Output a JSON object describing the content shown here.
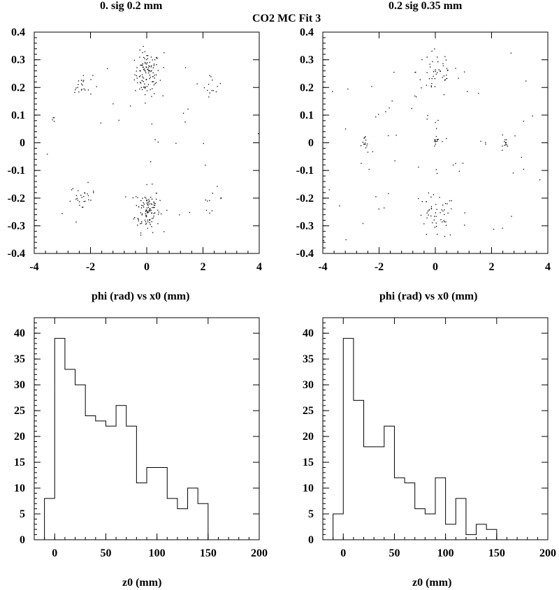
{
  "figure": {
    "title": "CO2 MC Fit 3"
  },
  "chart_data": [
    {
      "type": "scatter",
      "title": "0.  sig  0.2 mm",
      "xlabel": "phi (rad) vs x0 (mm)",
      "ylabel": "",
      "xlim": [
        -4,
        4
      ],
      "ylim": [
        -0.4,
        0.4
      ],
      "xticks": [
        "-4",
        "-2",
        "0",
        "2",
        "4"
      ],
      "yticks": [
        "-0.4",
        "-0.3",
        "-0.2",
        "-0.1",
        "0",
        "0.1",
        "0.2",
        "0.3",
        "0.4"
      ],
      "clusters": [
        {
          "cx": 0.0,
          "cy": 0.25,
          "sx": 0.22,
          "sy": 0.04,
          "n": 110
        },
        {
          "cx": 0.0,
          "cy": -0.24,
          "sx": 0.22,
          "sy": 0.04,
          "n": 110
        },
        {
          "cx": -2.3,
          "cy": 0.21,
          "sx": 0.18,
          "sy": 0.02,
          "n": 22
        },
        {
          "cx": 2.3,
          "cy": 0.21,
          "sx": 0.18,
          "sy": 0.02,
          "n": 14
        },
        {
          "cx": -2.3,
          "cy": -0.2,
          "sx": 0.22,
          "sy": 0.025,
          "n": 26
        },
        {
          "cx": 2.3,
          "cy": -0.2,
          "sx": 0.2,
          "sy": 0.02,
          "n": 9
        },
        {
          "cx": -3.3,
          "cy": 0.085,
          "sx": 0.05,
          "sy": 0.005,
          "n": 4
        },
        {
          "cx": 0.0,
          "cy": 0.0,
          "sx": 2.2,
          "sy": 0.14,
          "n": 30
        }
      ]
    },
    {
      "type": "scatter",
      "title": "0.2  sig  0.35 mm",
      "xlabel": "phi (rad) vs x0 (mm)",
      "ylabel": "",
      "xlim": [
        -4,
        4
      ],
      "ylim": [
        -0.4,
        0.4
      ],
      "xticks": [
        "-4",
        "-2",
        "0",
        "2",
        "4"
      ],
      "yticks": [
        "-0.4",
        "-0.3",
        "-0.2",
        "-0.1",
        "0",
        "0.1",
        "0.2",
        "0.3",
        "0.4"
      ],
      "clusters": [
        {
          "cx": 0.0,
          "cy": 0.26,
          "sx": 0.35,
          "sy": 0.05,
          "n": 45
        },
        {
          "cx": 0.0,
          "cy": -0.27,
          "sx": 0.35,
          "sy": 0.04,
          "n": 45
        },
        {
          "cx": -2.5,
          "cy": 0.0,
          "sx": 0.06,
          "sy": 0.01,
          "n": 12
        },
        {
          "cx": 0.0,
          "cy": 0.0,
          "sx": 0.06,
          "sy": 0.01,
          "n": 12
        },
        {
          "cx": 2.5,
          "cy": 0.0,
          "sx": 0.06,
          "sy": 0.01,
          "n": 12
        },
        {
          "cx": 0.0,
          "cy": 0.0,
          "sx": 2.4,
          "sy": 0.17,
          "n": 85
        }
      ]
    },
    {
      "type": "histogram",
      "xlabel": "z0 (mm)",
      "ylabel": "",
      "xlim": [
        -20,
        200
      ],
      "ylim": [
        0,
        43
      ],
      "xticks": [
        "0",
        "50",
        "100",
        "150",
        "200"
      ],
      "yticks": [
        "0",
        "5",
        "10",
        "15",
        "20",
        "25",
        "30",
        "35",
        "40"
      ],
      "bin_edges": [
        -10,
        0,
        10,
        20,
        30,
        40,
        50,
        60,
        70,
        80,
        90,
        100,
        110,
        120,
        130,
        140,
        150
      ],
      "values": [
        8,
        39,
        33,
        30,
        24,
        23,
        22,
        26,
        22,
        11,
        14,
        14,
        8,
        6,
        10,
        7
      ]
    },
    {
      "type": "histogram",
      "xlabel": "z0 (mm)",
      "ylabel": "",
      "xlim": [
        -20,
        200
      ],
      "ylim": [
        0,
        43
      ],
      "xticks": [
        "0",
        "50",
        "100",
        "150",
        "200"
      ],
      "yticks": [
        "0",
        "5",
        "10",
        "15",
        "20",
        "25",
        "30",
        "35",
        "40"
      ],
      "bin_edges": [
        -10,
        0,
        10,
        20,
        30,
        40,
        50,
        60,
        70,
        80,
        90,
        100,
        110,
        120,
        130,
        140,
        150
      ],
      "values": [
        5,
        39,
        27,
        18,
        18,
        22,
        12,
        11,
        6,
        5,
        12,
        3,
        8,
        1,
        3,
        2
      ]
    }
  ]
}
